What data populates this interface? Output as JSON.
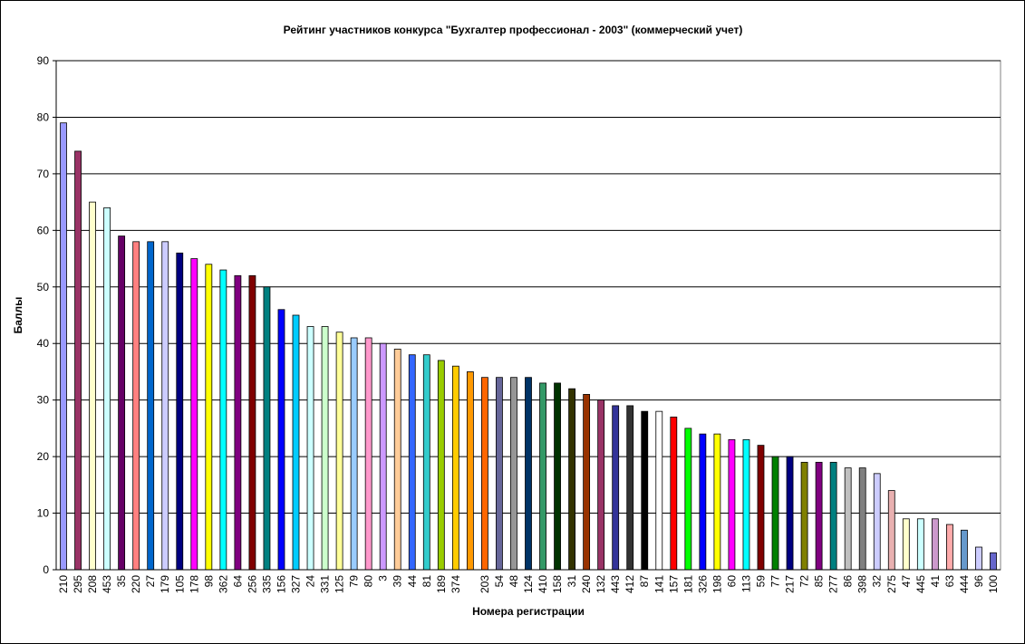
{
  "chart_data": {
    "type": "bar",
    "title": "Рейтинг участников конкурса \"Бухгалтер профессионал - 2003\" (коммерческий учет)",
    "x_label": "Номера регистрации",
    "y_label": "Баллы",
    "categories": [
      "210",
      "295",
      "208",
      "453",
      "35",
      "220",
      "27",
      "179",
      "105",
      "178",
      "98",
      "362",
      "64",
      "256",
      "335",
      "156",
      "327",
      "24",
      "331",
      "125",
      "79",
      "80",
      "3",
      "39",
      "44",
      "81",
      "189",
      "374",
      null,
      "203",
      "54",
      "48",
      "124",
      "410",
      "158",
      "31",
      "240",
      "132",
      "443",
      "412",
      "87",
      "141",
      "157",
      "181",
      "326",
      "198",
      "60",
      "113",
      "59",
      "77",
      "217",
      "72",
      "85",
      "277",
      "86",
      "398",
      "32",
      "275",
      "47",
      "445",
      "41",
      "63",
      "444",
      "96",
      "100"
    ],
    "values": [
      79,
      74,
      65,
      64,
      59,
      58,
      58,
      58,
      56,
      55,
      54,
      53,
      52,
      52,
      50,
      46,
      45,
      43,
      43,
      42,
      41,
      41,
      40,
      39,
      38,
      38,
      37,
      36,
      35,
      34,
      34,
      34,
      34,
      33,
      33,
      32,
      31,
      30,
      29,
      29,
      28,
      28,
      27,
      25,
      24,
      24,
      23,
      23,
      22,
      20,
      20,
      19,
      19,
      19,
      18,
      18,
      17,
      14,
      9,
      9,
      9,
      8,
      7,
      4,
      3
    ],
    "colors": [
      "#9999ff",
      "#993366",
      "#ffffcc",
      "#ccffff",
      "#660066",
      "#ff8080",
      "#0066cc",
      "#ccccff",
      "#000080",
      "#ff00ff",
      "#ffff00",
      "#00ffff",
      "#800080",
      "#800000",
      "#008080",
      "#0000ff",
      "#00ccff",
      "#ccffff",
      "#ccffcc",
      "#ffff99",
      "#99ccff",
      "#ff99cc",
      "#cc99ff",
      "#ffcc99",
      "#3366ff",
      "#33cccc",
      "#99cc00",
      "#ffcc00",
      "#ff9900",
      "#ff6600",
      "#666699",
      "#969696",
      "#003366",
      "#339966",
      "#003300",
      "#333300",
      "#993300",
      "#993366",
      "#333399",
      "#333333",
      "#000000",
      "#ffffff",
      "#ff0000",
      "#00ff00",
      "#0000ff",
      "#ffff00",
      "#ff00ff",
      "#00ffff",
      "#800000",
      "#008000",
      "#000080",
      "#808000",
      "#800080",
      "#008080",
      "#c0c0c0",
      "#808080",
      "#ccccff",
      "#e8b0b0",
      "#ffffcc",
      "#ccffff",
      "#cc99cc",
      "#ffaaaa",
      "#6699cc",
      "#ccccff",
      "#6666cc"
    ],
    "ylim": [
      0,
      90
    ],
    "yticks": [
      0,
      10,
      20,
      30,
      40,
      50,
      60,
      70,
      80,
      90
    ],
    "grid": true
  }
}
